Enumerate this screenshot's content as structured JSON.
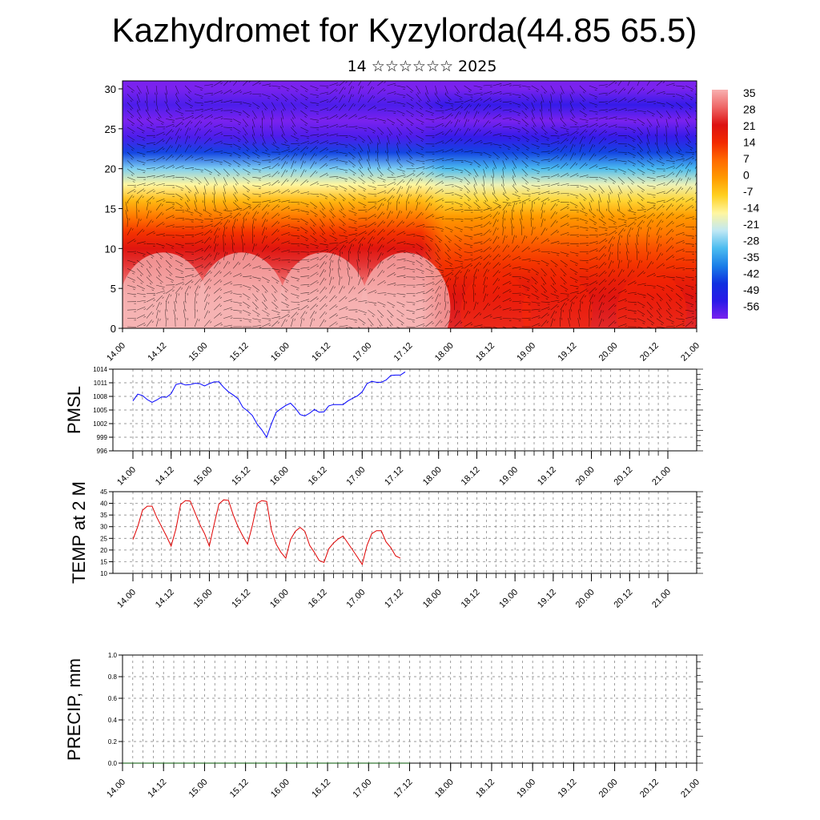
{
  "title": "Kazhydromet for Kyzylorda(44.85 65.5)",
  "subtitle": "14 ☆☆☆☆☆☆ 2025",
  "colors": {
    "pmsl_line": "#0000ff",
    "temp_line": "#e00000",
    "grid": "#777777"
  },
  "chart_data": [
    {
      "type": "heatmap",
      "title": "",
      "ylim": [
        0,
        31
      ],
      "y_ticks": [
        0,
        5,
        10,
        15,
        20,
        25,
        30
      ],
      "x_ticks": [
        "14.00",
        "14.12",
        "15.00",
        "15.12",
        "16.00",
        "16.12",
        "17.00",
        "17.12",
        "18.00",
        "18.12",
        "19.00",
        "19.12",
        "20.00",
        "20.12",
        "21.00"
      ],
      "colorbar": {
        "labels": [
          "35",
          "28",
          "21",
          "14",
          "7",
          "0",
          "-7",
          "-14",
          "-21",
          "-28",
          "-35",
          "-42",
          "-49",
          "-56"
        ],
        "colors": [
          "#f8b0b0",
          "#ee6666",
          "#dd1111",
          "#f22a00",
          "#ff6a00",
          "#ff9a00",
          "#ffd020",
          "#fff6a0",
          "#c0e8f4",
          "#4cbcf0",
          "#1a7ee8",
          "#1030e0",
          "#2a1ae8",
          "#7a22ee"
        ]
      },
      "profile_levels": [
        0,
        2,
        4,
        6,
        8,
        10,
        12,
        14,
        16,
        18,
        20,
        22,
        24,
        26,
        28,
        30,
        31
      ],
      "profile_temps_before_17_12": [
        36,
        35,
        33,
        28,
        24,
        20,
        13,
        5,
        -4,
        -14,
        -25,
        -40,
        -52,
        -56,
        -52,
        -56,
        -57
      ],
      "profile_temps_after_17_12": [
        23,
        22,
        20,
        17,
        13,
        10,
        5,
        0,
        -8,
        -16,
        -28,
        -40,
        -50,
        -56,
        -50,
        -56,
        -58
      ]
    },
    {
      "type": "line",
      "ylabel": "PMSL",
      "ylim": [
        996,
        1014
      ],
      "y_ticks": [
        996,
        999,
        1002,
        1005,
        1008,
        1011,
        1014
      ],
      "x_ticks": [
        "14.00",
        "14.12",
        "15.00",
        "15.12",
        "16.00",
        "16.12",
        "17.00",
        "17.12",
        "18.00",
        "18.12",
        "19.00",
        "19.12",
        "20.00",
        "20.12",
        "21.00"
      ],
      "x_step_hours": 3,
      "series": [
        {
          "values": [
            1007.0,
            1008.5,
            1008.2,
            1007.3,
            1006.7,
            1007.2,
            1007.9,
            1007.8,
            1008.6,
            1010.6,
            1010.9,
            1010.5,
            1010.6,
            1010.9,
            1010.8,
            1010.3,
            1010.8,
            1011.2,
            1011.2,
            1010.0,
            1009.0,
            1008.3,
            1007.5,
            1005.6,
            1004.8,
            1003.8,
            1001.9,
            1000.6,
            999.0,
            1002.0,
            1004.5,
            1005.3,
            1006.0,
            1006.5,
            1005.4,
            1004.0,
            1003.7,
            1004.3,
            1005.1,
            1004.5,
            1004.6,
            1005.9,
            1006.2,
            1006.2,
            1006.2,
            1007.0,
            1007.6,
            1008.1,
            1009.0,
            1010.8,
            1011.3,
            1011.1,
            1011.1,
            1011.6,
            1012.6,
            1012.7,
            1012.7,
            1013.4
          ]
        }
      ]
    },
    {
      "type": "line",
      "ylabel": "TEMP at 2 M",
      "ylim": [
        10,
        45
      ],
      "y_ticks": [
        10,
        15,
        20,
        25,
        30,
        35,
        40,
        45
      ],
      "x_ticks": [
        "14.00",
        "14.12",
        "15.00",
        "15.12",
        "16.00",
        "16.12",
        "17.00",
        "17.12",
        "18.00",
        "18.12",
        "19.00",
        "19.12",
        "20.00",
        "20.12",
        "21.00"
      ],
      "x_step_hours": 3,
      "series": [
        {
          "values": [
            24.5,
            30,
            37,
            38.8,
            38.8,
            34,
            30,
            26,
            21.7,
            29,
            39.5,
            41.2,
            41,
            36,
            31,
            27,
            21.7,
            31,
            39.7,
            41.5,
            41.3,
            35,
            30,
            26,
            22.5,
            30.5,
            40,
            41.2,
            40.8,
            28.5,
            22.5,
            19,
            16.5,
            24.5,
            28,
            29.7,
            28,
            22,
            19,
            15.5,
            14.7,
            20.5,
            23,
            24.8,
            26,
            23,
            20,
            17,
            13.8,
            22,
            27,
            28.3,
            28.3,
            23.5,
            21,
            17.5,
            16.5
          ]
        }
      ]
    },
    {
      "type": "line",
      "ylabel": "PRECIP, mm",
      "ylim": [
        0,
        1
      ],
      "y_ticks": [
        "0.0",
        "0.2",
        "0.4",
        "0.6",
        "0.8",
        "1.0"
      ],
      "x_ticks": [
        "14.00",
        "14.12",
        "15.00",
        "15.12",
        "16.00",
        "16.12",
        "17.00",
        "17.12",
        "18.00",
        "18.12",
        "19.00",
        "19.12",
        "20.00",
        "20.12",
        "21.00"
      ],
      "x_step_hours": 3,
      "series": [
        {
          "values": [
            0,
            0,
            0,
            0,
            0,
            0,
            0,
            0,
            0,
            0,
            0,
            0,
            0,
            0,
            0,
            0,
            0,
            0,
            0,
            0,
            0,
            0,
            0,
            0,
            0,
            0,
            0,
            0,
            0,
            0,
            0,
            0,
            0,
            0,
            0,
            0,
            0,
            0,
            0,
            0,
            0,
            0,
            0,
            0,
            0,
            0,
            0,
            0,
            0,
            0,
            0,
            0,
            0,
            0,
            0,
            0,
            0
          ]
        }
      ]
    }
  ]
}
